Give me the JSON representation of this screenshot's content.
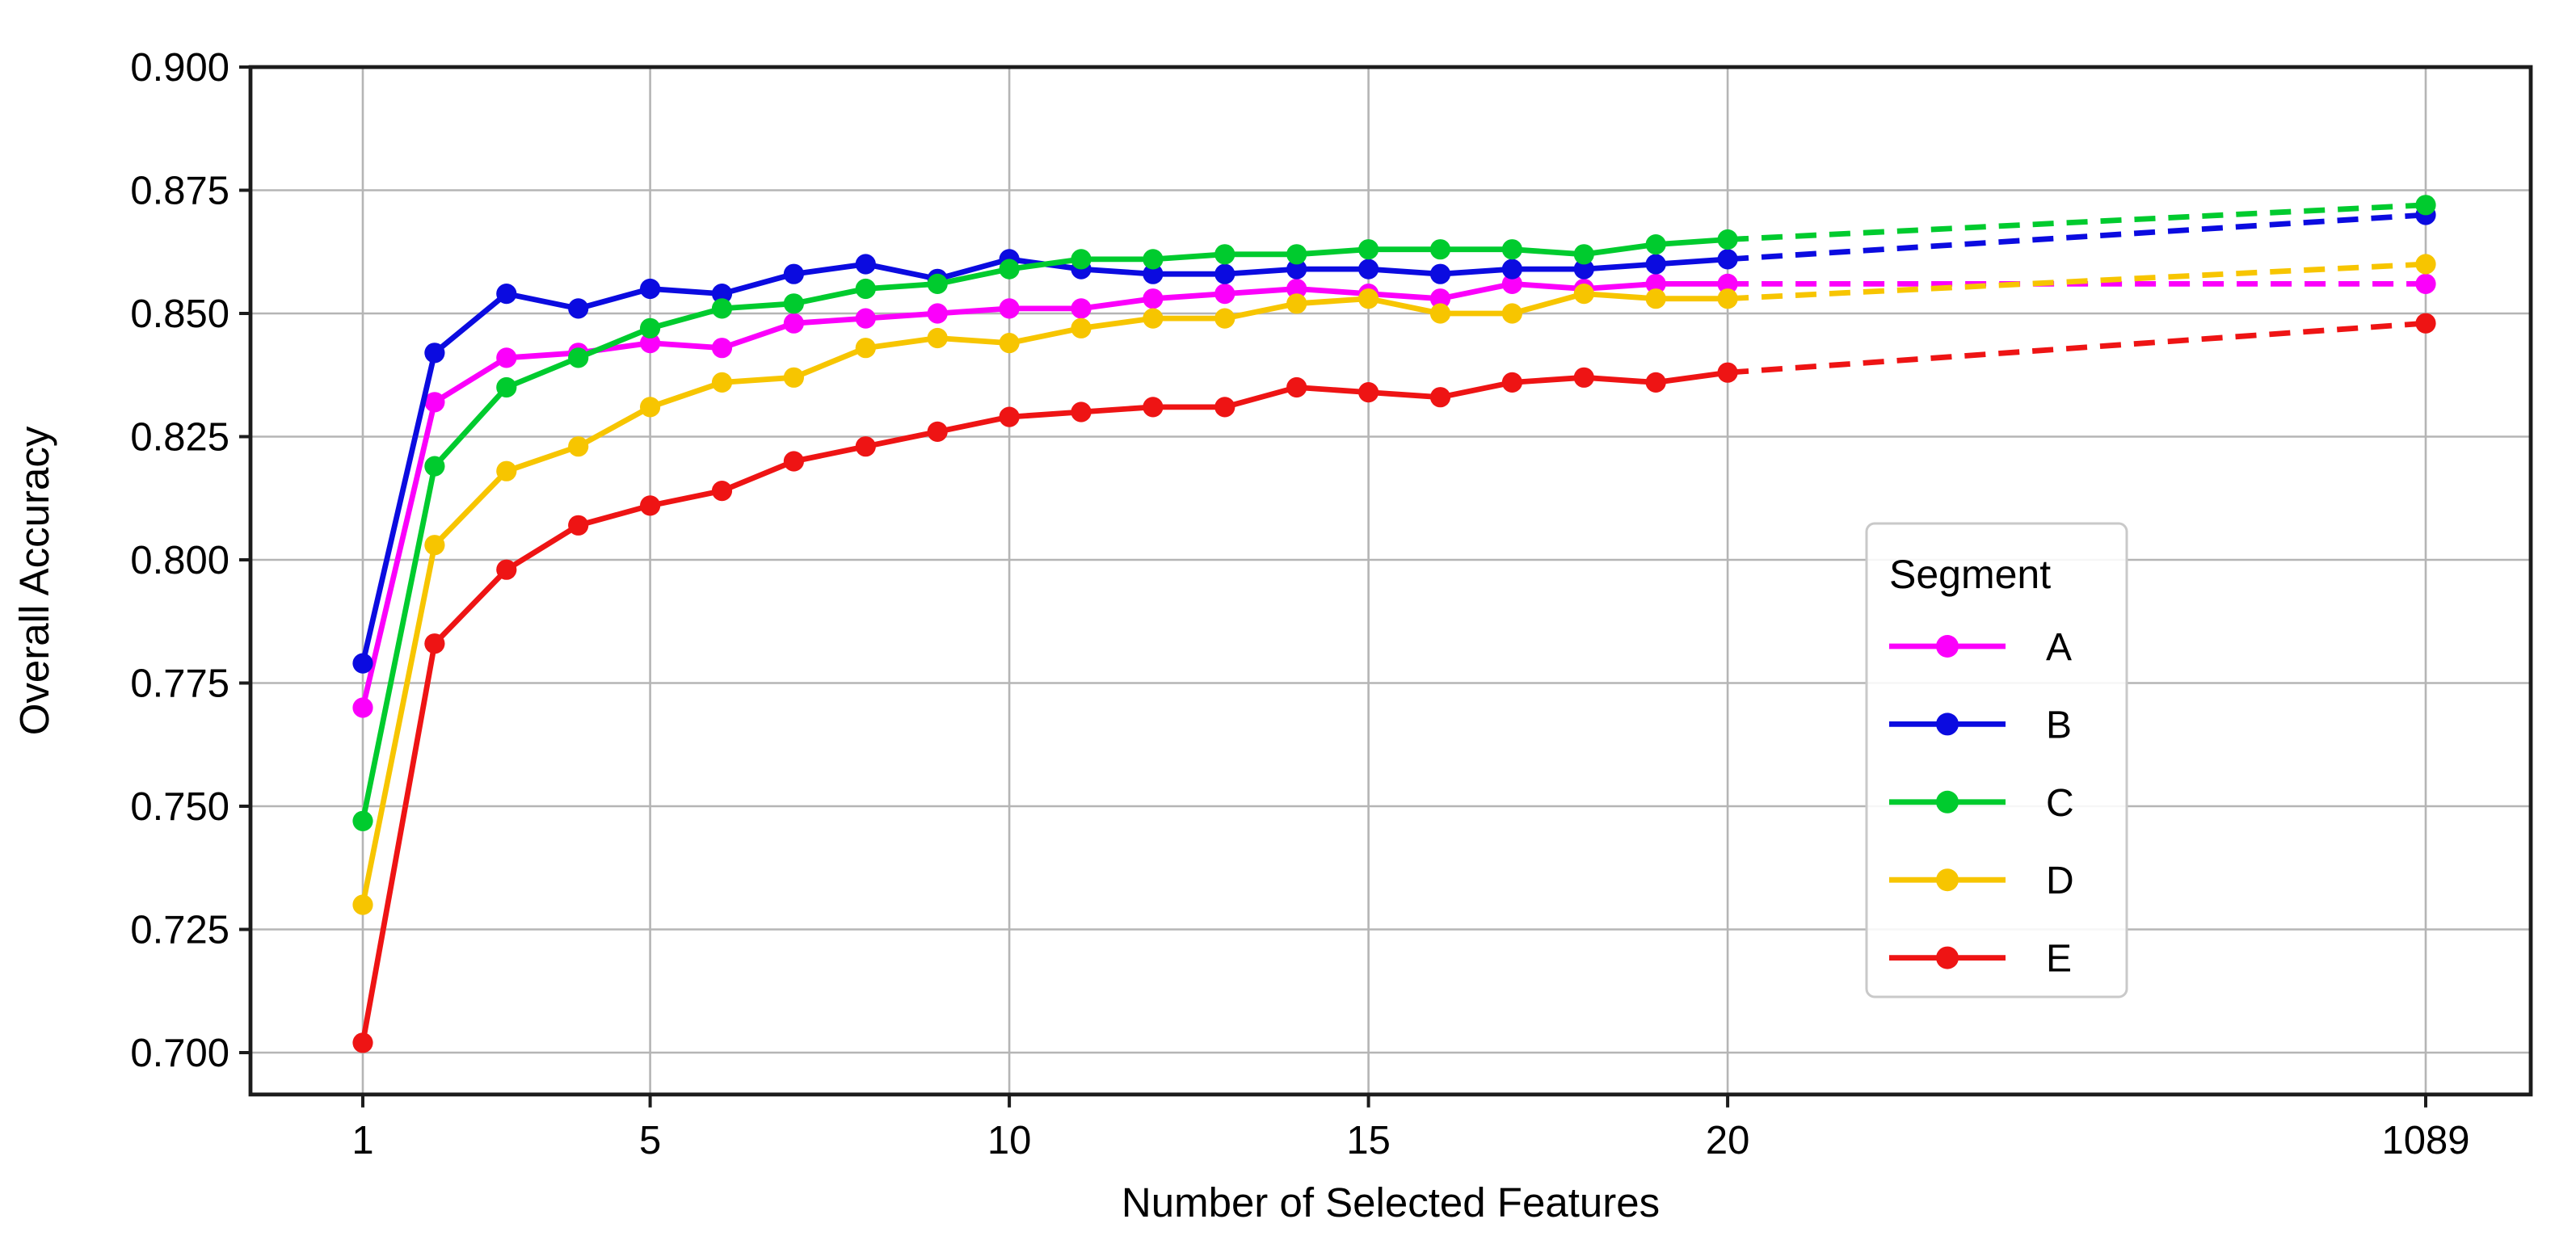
{
  "figure": {
    "background": "#ffffff"
  },
  "chart_data": {
    "type": "line",
    "title": "",
    "xlabel": "Number of Selected Features",
    "ylabel": "Overall Accuracy",
    "x": [
      1,
      2,
      3,
      4,
      5,
      6,
      7,
      8,
      9,
      10,
      11,
      12,
      13,
      14,
      15,
      16,
      17,
      18,
      19,
      20,
      1089
    ],
    "x_tick_values": [
      1,
      5,
      10,
      15,
      20,
      1089
    ],
    "x_tick_labels": [
      "1",
      "5",
      "10",
      "15",
      "20",
      "1089"
    ],
    "y_ticks": [
      0.9,
      0.875,
      0.85,
      0.825,
      0.8,
      0.775,
      0.75,
      0.725,
      0.7
    ],
    "y_tick_labels": [
      "0.900",
      "0.875",
      "0.850",
      "0.825",
      "0.800",
      "0.775",
      "0.750",
      "0.725",
      "0.700"
    ],
    "ylim": [
      0.6915,
      0.9
    ],
    "grid": true,
    "x_axis_note": "linear 1-20, axis compressed between 20 and 1089; segment 20-1089 drawn dashed",
    "legend": {
      "title": "Segment",
      "position": "center-right",
      "entries": [
        "A",
        "B",
        "C",
        "D",
        "E"
      ]
    },
    "series": [
      {
        "name": "A",
        "color": "#fb00fb",
        "values": [
          0.77,
          0.832,
          0.841,
          0.842,
          0.844,
          0.843,
          0.848,
          0.849,
          0.85,
          0.851,
          0.851,
          0.853,
          0.854,
          0.855,
          0.854,
          0.853,
          0.856,
          0.855,
          0.856,
          0.856,
          0.856
        ]
      },
      {
        "name": "B",
        "color": "#0b0be0",
        "values": [
          0.779,
          0.842,
          0.854,
          0.851,
          0.855,
          0.854,
          0.858,
          0.86,
          0.857,
          0.861,
          0.859,
          0.858,
          0.858,
          0.859,
          0.859,
          0.858,
          0.859,
          0.859,
          0.86,
          0.861,
          0.87
        ]
      },
      {
        "name": "C",
        "color": "#00cb2e",
        "values": [
          0.747,
          0.819,
          0.835,
          0.841,
          0.847,
          0.851,
          0.852,
          0.855,
          0.856,
          0.859,
          0.861,
          0.861,
          0.862,
          0.862,
          0.863,
          0.863,
          0.863,
          0.862,
          0.864,
          0.865,
          0.872
        ]
      },
      {
        "name": "D",
        "color": "#f7c500",
        "values": [
          0.73,
          0.803,
          0.818,
          0.823,
          0.831,
          0.836,
          0.837,
          0.843,
          0.845,
          0.844,
          0.847,
          0.849,
          0.849,
          0.852,
          0.853,
          0.85,
          0.85,
          0.854,
          0.853,
          0.853,
          0.86
        ]
      },
      {
        "name": "E",
        "color": "#ee1414",
        "values": [
          0.702,
          0.783,
          0.798,
          0.807,
          0.811,
          0.814,
          0.82,
          0.823,
          0.826,
          0.829,
          0.83,
          0.831,
          0.831,
          0.835,
          0.834,
          0.833,
          0.836,
          0.837,
          0.836,
          0.838,
          0.848
        ]
      }
    ],
    "style": {
      "solid_until_x": 20,
      "dashed_after": true,
      "marker": "circle"
    }
  }
}
